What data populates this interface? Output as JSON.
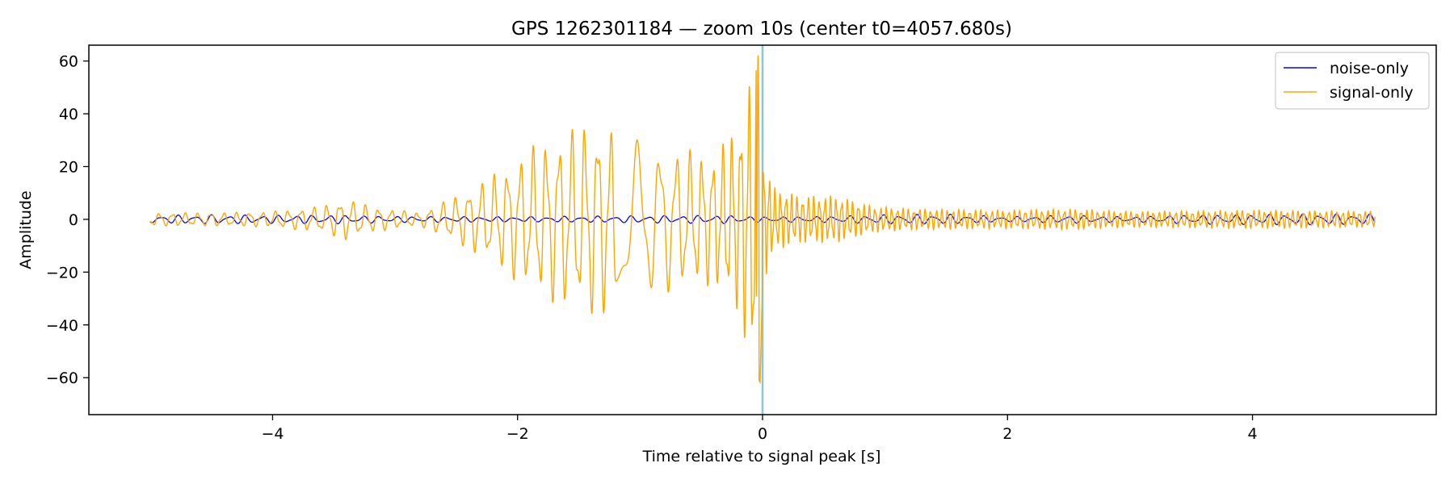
{
  "chart_data": {
    "type": "line",
    "title": "GPS 1262301184 — zoom 10s (center t0=4057.680s)",
    "xlabel": "Time relative to signal peak [s]",
    "ylabel": "Amplitude",
    "xlim": [
      -5.5,
      5.5
    ],
    "ylim": [
      -74,
      66
    ],
    "xticks": [
      -4,
      -2,
      0,
      2,
      4
    ],
    "xtick_labels": [
      "−4",
      "−2",
      "0",
      "2",
      "4"
    ],
    "yticks": [
      -60,
      -40,
      -20,
      0,
      20,
      40,
      60
    ],
    "ytick_labels": [
      "−60",
      "−40",
      "−20",
      "0",
      "20",
      "40",
      "60"
    ],
    "grid": false,
    "legend_position": "top-right",
    "vline": {
      "x": 0,
      "color": "#87c6de"
    },
    "series": [
      {
        "name": "noise-only",
        "color": "#0000ff",
        "envelope": {
          "t": [
            -5,
            -4.5,
            -4,
            -3.5,
            -3,
            -2,
            -1,
            -0.3,
            0,
            0.5,
            1,
            1.5,
            2,
            2.5,
            3,
            3.5,
            4,
            4.5,
            5
          ],
          "a": [
            1.5,
            1.8,
            1.6,
            1.7,
            1.2,
            1.0,
            1.4,
            1.6,
            1.0,
            1.2,
            1.8,
            2.0,
            1.0,
            1.6,
            1.0,
            1.8,
            2.0,
            2.2,
            2.0
          ]
        }
      },
      {
        "name": "signal-only",
        "color": "#ffa500",
        "envelope": {
          "t": [
            -5,
            -4.5,
            -4,
            -3.6,
            -3.4,
            -3.2,
            -2.8,
            -2.5,
            -2.2,
            -2.0,
            -1.8,
            -1.6,
            -1.35,
            -1.0,
            -0.7,
            -0.4,
            -0.2,
            -0.08,
            -0.02,
            0,
            0.1,
            0.3,
            0.6,
            0.9,
            1.2,
            2.0,
            2.5,
            3.0,
            4.0,
            5.0
          ],
          "a": [
            2.5,
            2.5,
            3.0,
            5.0,
            8.0,
            5.0,
            2.5,
            9.0,
            17.0,
            24.0,
            30.0,
            34.0,
            38.0,
            30.0,
            27.0,
            25.0,
            36.0,
            60.0,
            65.0,
            25.0,
            12.0,
            9.0,
            9.0,
            5.0,
            4.0,
            3.5,
            4.0,
            3.0,
            3.5,
            3.0
          ]
        }
      }
    ]
  }
}
